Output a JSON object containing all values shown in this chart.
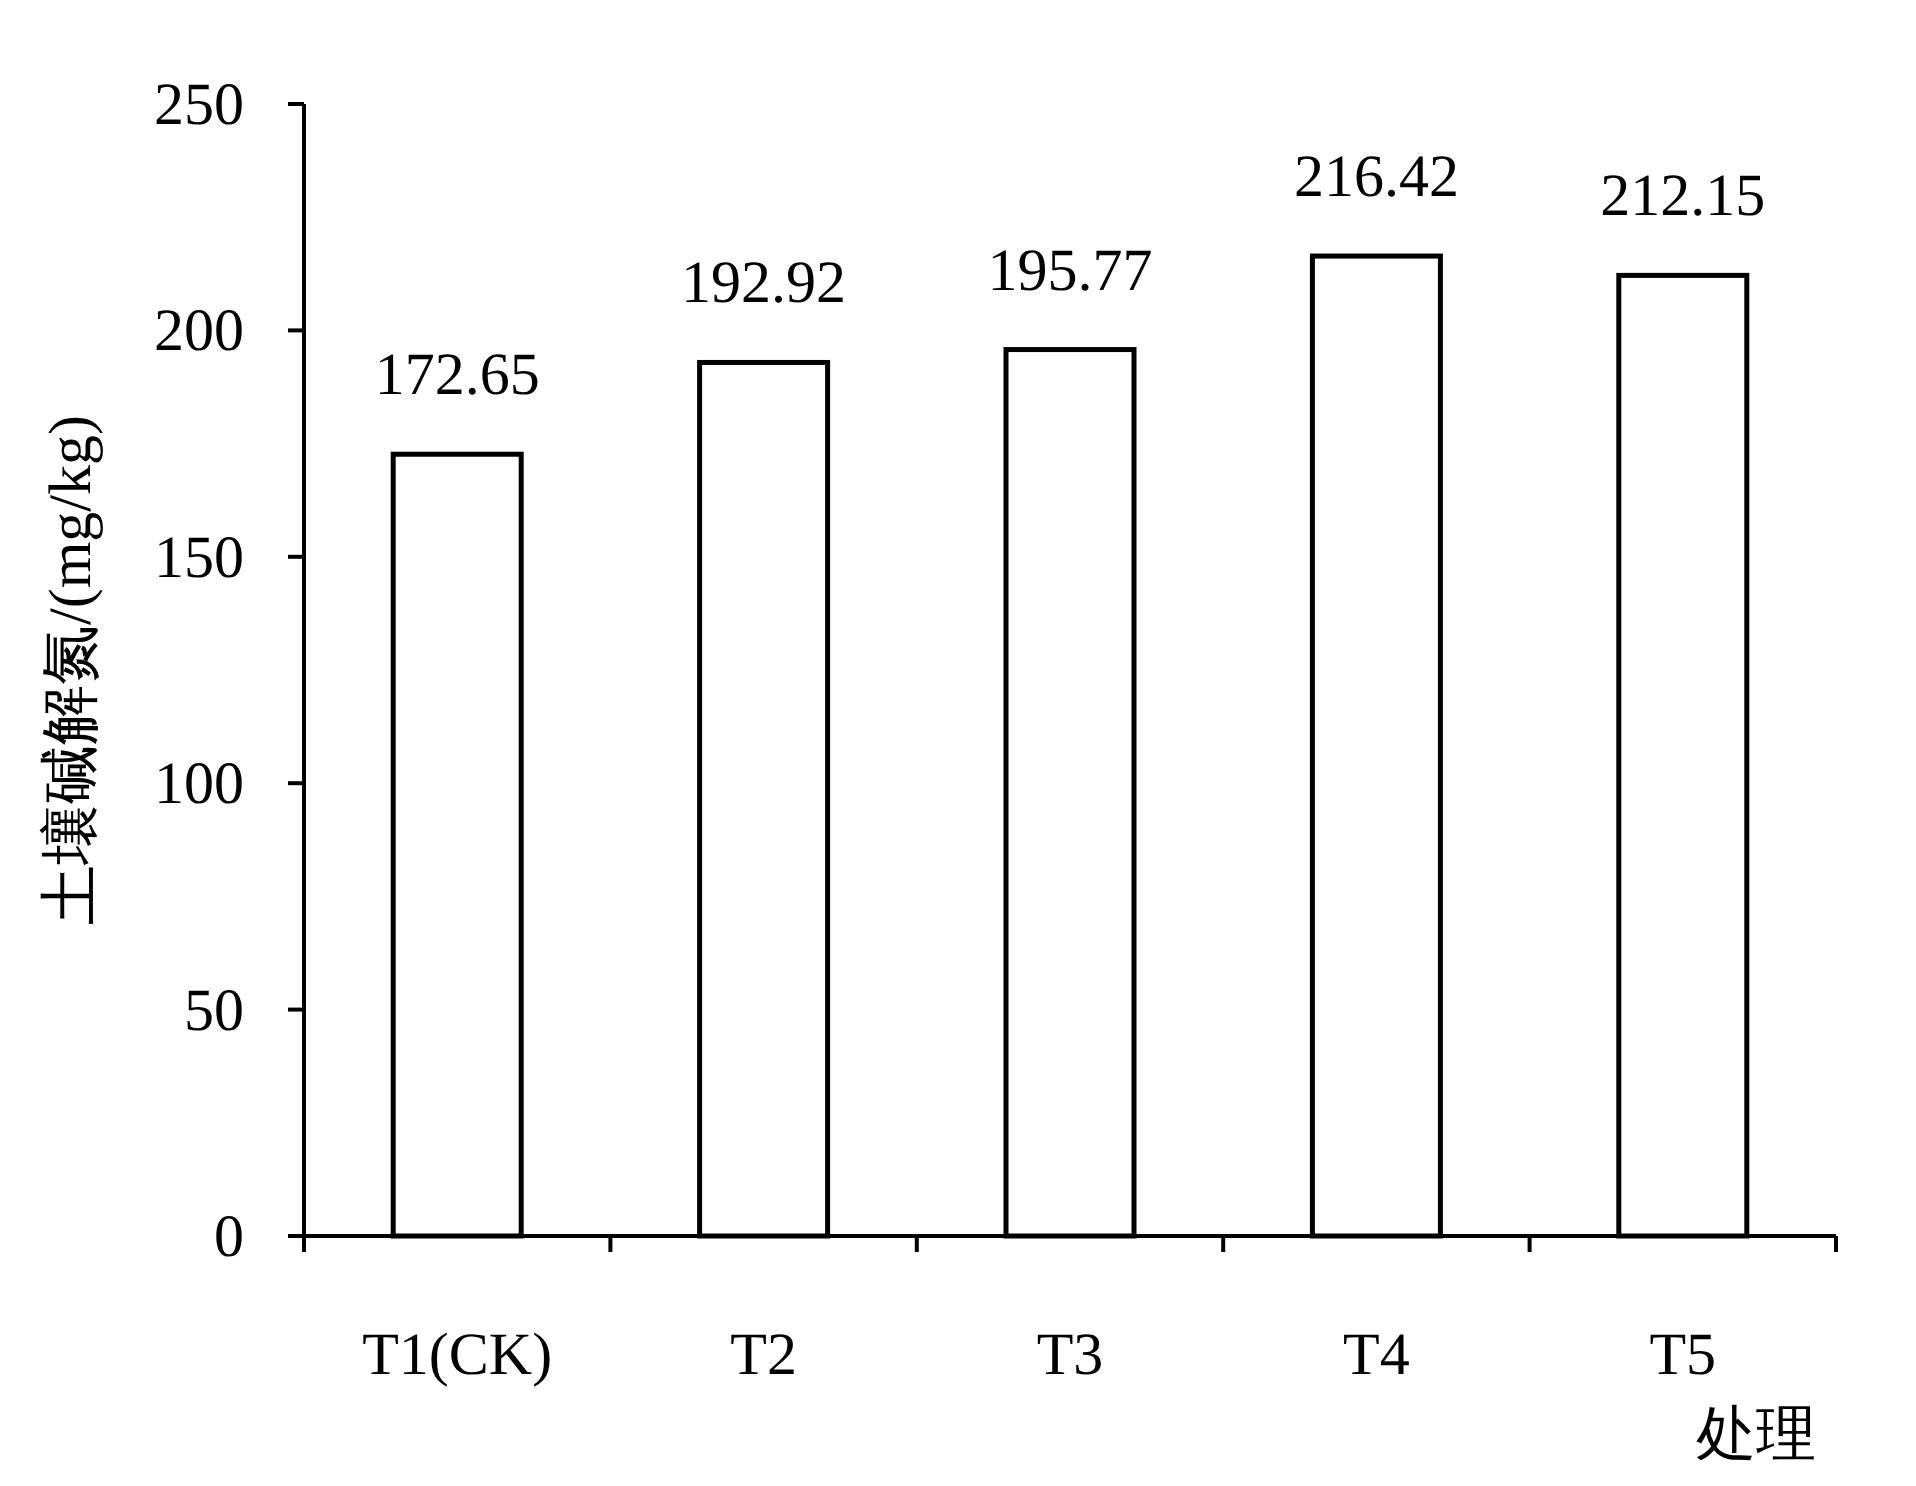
{
  "chart_data": {
    "type": "bar",
    "xlabel": "处理",
    "ylabel": "土壤碱解氮/(mg/kg)",
    "categories": [
      "T1(CK)",
      "T2",
      "T3",
      "T4",
      "T5"
    ],
    "values": [
      172.65,
      192.92,
      195.77,
      216.42,
      212.15
    ],
    "color": "#ffffff",
    "ylim": [
      0,
      250
    ],
    "yticks": [
      0,
      50,
      100,
      150,
      200,
      250
    ],
    "data_labels": true,
    "grid": false
  }
}
